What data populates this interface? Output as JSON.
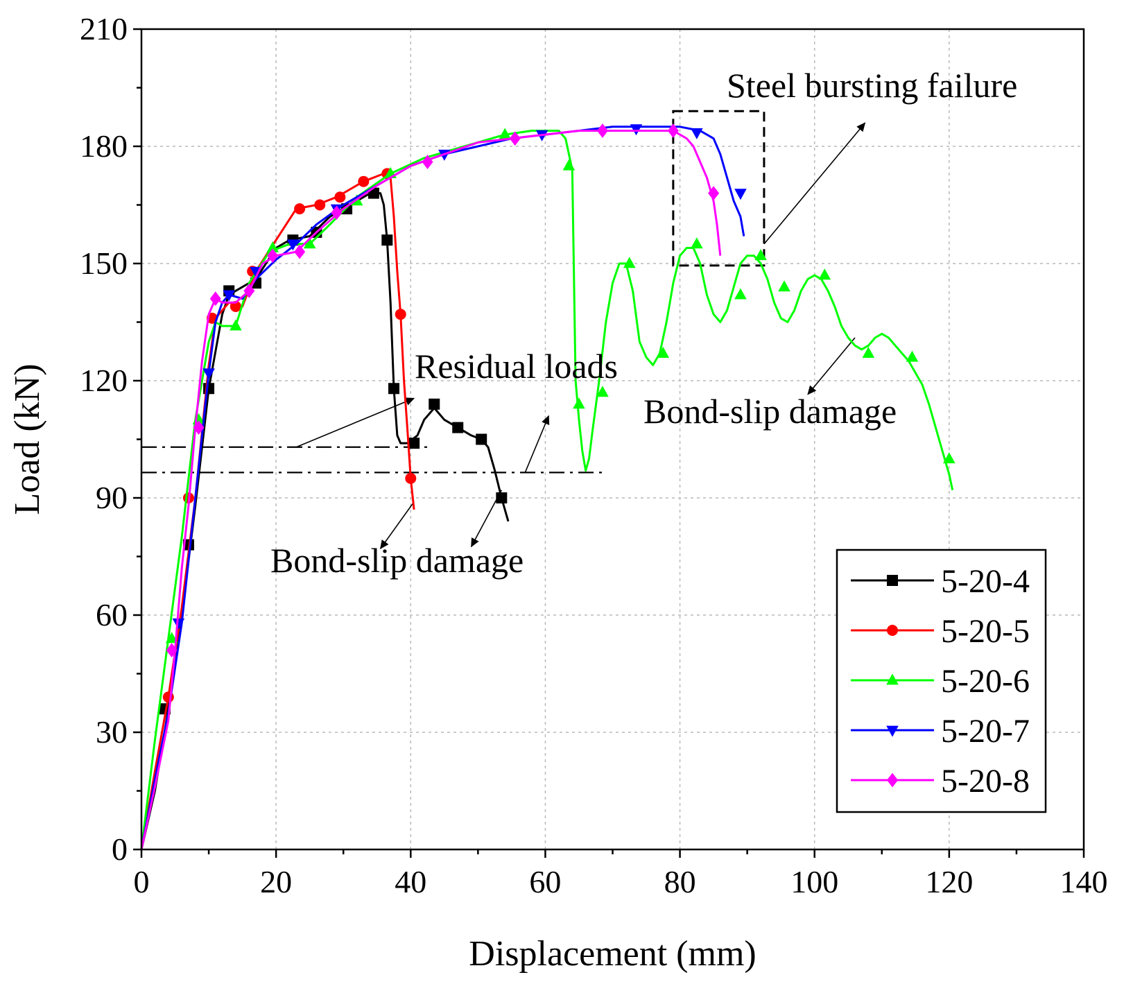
{
  "chart_data": {
    "type": "line",
    "title": "",
    "xlabel": "Displacement (mm)",
    "ylabel": "Load (kN)",
    "xlim": [
      0,
      140
    ],
    "ylim": [
      0,
      210
    ],
    "xticks": [
      0,
      20,
      40,
      60,
      80,
      100,
      120,
      140
    ],
    "yticks": [
      0,
      30,
      60,
      90,
      120,
      150,
      180,
      210
    ],
    "grid": true,
    "legend_position": "bottom-right",
    "series": [
      {
        "name": "5-20-4",
        "color": "#000000",
        "marker": "square",
        "x": [
          0,
          2,
          4,
          6,
          8,
          10,
          12,
          13,
          15,
          17,
          20,
          22,
          25,
          28,
          31,
          34,
          35.5,
          36,
          36.5,
          37,
          37.5,
          38,
          38.5,
          39.5,
          41,
          42,
          43.5,
          45,
          47,
          49,
          50.5,
          51.5,
          52.5,
          53.5,
          54.5
        ],
        "y": [
          0,
          15,
          36,
          60,
          88,
          118,
          137,
          142,
          144,
          146,
          154,
          156,
          157,
          162,
          165,
          168,
          168,
          165,
          156,
          140,
          118,
          106,
          104,
          104,
          106,
          110,
          113,
          110,
          108,
          106,
          105,
          103,
          97,
          90,
          84
        ],
        "markers_x": [
          3.5,
          7,
          10,
          13,
          17,
          22.5,
          26,
          30.5,
          34.5,
          36.5,
          37.5,
          40.5,
          43.5,
          47,
          50.5,
          53.5
        ],
        "markers_y": [
          36,
          78,
          118,
          143,
          145,
          156,
          158,
          164,
          168,
          156,
          118,
          104,
          114,
          108,
          105,
          90
        ]
      },
      {
        "name": "5-20-5",
        "color": "#ff0000",
        "marker": "circle",
        "x": [
          0,
          2,
          4,
          6,
          8,
          10,
          11,
          13,
          15,
          17,
          20,
          23,
          26,
          29,
          33,
          36,
          37,
          37.5,
          38,
          38.5,
          39,
          39.5,
          40,
          40.5
        ],
        "y": [
          0,
          20,
          39,
          62,
          90,
          124,
          136,
          140,
          139,
          148,
          156,
          164,
          165,
          167,
          171,
          173,
          172,
          162,
          148,
          137,
          120,
          108,
          95,
          87
        ],
        "markers_x": [
          4,
          7,
          10.5,
          14,
          16.5,
          23.5,
          26.5,
          29.5,
          33,
          36.5,
          38.5,
          40
        ],
        "markers_y": [
          39,
          90,
          136,
          139,
          148,
          164,
          165,
          167,
          171,
          173,
          137,
          95
        ]
      },
      {
        "name": "5-20-6",
        "color": "#00ff00",
        "marker": "triangle-up",
        "x": [
          0,
          2,
          4,
          6,
          8,
          10,
          11,
          12,
          14,
          16,
          19,
          22,
          25,
          28,
          32,
          37,
          42,
          48,
          54,
          58,
          62,
          63,
          64,
          64.5,
          65,
          65.5,
          66,
          66.5,
          67,
          68,
          69,
          70,
          71,
          72,
          73,
          74,
          75,
          76,
          77,
          78,
          79,
          80,
          81,
          82,
          83,
          84,
          85,
          86,
          87,
          88,
          89,
          90,
          91,
          92,
          93,
          94,
          95,
          96,
          97,
          98,
          99,
          100,
          101,
          102,
          103,
          104,
          105,
          106,
          107,
          108,
          109,
          110,
          111,
          112,
          113,
          114,
          115,
          116,
          117,
          118,
          119,
          120,
          120.5
        ],
        "y": [
          0,
          28,
          54,
          80,
          110,
          130,
          135,
          134,
          134,
          145,
          153,
          155,
          155,
          160,
          167,
          173,
          177,
          180,
          183,
          184,
          184,
          182,
          174,
          120,
          110,
          102,
          97,
          100,
          107,
          120,
          135,
          145,
          150,
          150,
          143,
          130,
          126,
          124,
          127,
          135,
          145,
          152,
          154,
          154,
          150,
          142,
          137,
          135,
          138,
          144,
          150,
          152,
          152,
          150,
          146,
          140,
          136,
          135,
          138,
          143,
          146,
          147,
          146,
          143,
          139,
          134,
          131,
          129,
          128,
          129,
          131,
          132,
          131,
          129,
          127,
          125,
          122,
          119,
          114,
          108,
          102,
          96,
          92
        ],
        "markers_x": [
          4.5,
          8.5,
          14,
          19.5,
          25,
          32,
          37,
          54,
          63.5,
          65,
          68.5,
          72.5,
          77.5,
          82.5,
          89,
          92,
          95.5,
          101.5,
          108,
          114.5,
          120
        ],
        "markers_y": [
          54,
          110,
          134,
          154,
          155,
          166,
          173,
          183,
          175,
          114,
          117,
          150,
          127,
          155,
          142,
          152,
          144,
          147,
          127,
          126,
          100
        ]
      },
      {
        "name": "5-20-7",
        "color": "#0000ff",
        "marker": "triangle-down",
        "x": [
          0,
          2,
          4,
          6,
          8,
          10,
          11,
          12,
          13,
          15,
          17,
          20,
          23,
          26,
          30,
          35,
          40,
          45,
          50,
          55,
          60,
          65,
          70,
          75,
          80,
          83,
          85,
          86,
          87,
          88,
          89,
          89.5
        ],
        "y": [
          0,
          18,
          35,
          58,
          90,
          122,
          135,
          140,
          142,
          141,
          146,
          151,
          155,
          160,
          165,
          170,
          175,
          178,
          180,
          182,
          183,
          184,
          185,
          185,
          185,
          184,
          182,
          178,
          172,
          166,
          162,
          157
        ],
        "markers_x": [
          5.5,
          10,
          13,
          17,
          22.5,
          29,
          45,
          59.5,
          73.5,
          82.5,
          89
        ],
        "markers_y": [
          58,
          122,
          142,
          148,
          155,
          164,
          178,
          183,
          184.5,
          183.5,
          168
        ]
      },
      {
        "name": "5-20-8",
        "color": "#ff00ff",
        "marker": "diamond",
        "x": [
          0,
          2,
          4,
          5,
          6,
          7,
          8,
          9,
          10,
          11,
          12,
          14,
          16,
          18,
          20,
          23,
          26,
          30,
          35,
          40,
          45,
          50,
          55,
          60,
          65,
          70,
          75,
          79,
          81,
          82,
          83,
          84,
          85,
          85.5,
          86
        ],
        "y": [
          0,
          16,
          33,
          51,
          72,
          88,
          108,
          125,
          137,
          141,
          140,
          140,
          143,
          150,
          152,
          153,
          158,
          164,
          170,
          175,
          178,
          181,
          182,
          183,
          184,
          184,
          184,
          184,
          182,
          180,
          176,
          172,
          166,
          160,
          152
        ],
        "markers_x": [
          4.5,
          8.5,
          11,
          16,
          19.5,
          23.5,
          29,
          42.5,
          55.5,
          68.5,
          79,
          85
        ],
        "markers_y": [
          51,
          108,
          141,
          143,
          152,
          153,
          163,
          176,
          182,
          184,
          184,
          168
        ]
      }
    ],
    "annotations": [
      {
        "id": "steel",
        "text": "Steel bursting failure"
      },
      {
        "id": "residual",
        "text": "Residual loads"
      },
      {
        "id": "bond-right",
        "text": "Bond-slip damage"
      },
      {
        "id": "bond-left",
        "text": "Bond-slip damage"
      }
    ],
    "reference_lines": [
      {
        "y": 103,
        "x_from": 0,
        "x_to": 43,
        "style": "dash-dot"
      },
      {
        "y": 96.5,
        "x_from": 0,
        "x_to": 68.5,
        "style": "dash-dot"
      }
    ],
    "highlight_box": {
      "x_from": 79,
      "x_to": 92.5,
      "y_from": 149.5,
      "y_to": 189,
      "style": "dashed"
    },
    "arrows": [
      {
        "from": [
          92.5,
          155
        ],
        "to": [
          107.5,
          186
        ]
      },
      {
        "from": [
          23,
          103
        ],
        "to": [
          40.5,
          115.5
        ]
      },
      {
        "from": [
          57,
          96.5
        ],
        "to": [
          60.5,
          111
        ]
      },
      {
        "from": [
          106,
          131
        ],
        "to": [
          99,
          116.5
        ]
      },
      {
        "from": [
          40.5,
          89
        ],
        "to": [
          35.5,
          77
        ]
      },
      {
        "from": [
          53.5,
          92
        ],
        "to": [
          49,
          77.5
        ]
      }
    ]
  }
}
